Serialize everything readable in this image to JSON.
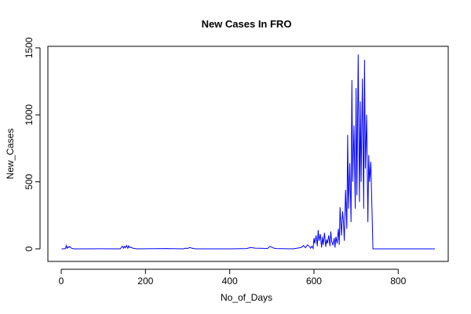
{
  "chart_data": {
    "type": "line",
    "title": "New Cases In FRO",
    "xlabel": "No_of_Days",
    "ylabel": "New_Cases",
    "xlim": [
      0,
      900
    ],
    "ylim": [
      0,
      1500
    ],
    "xticks": [
      0,
      200,
      400,
      600,
      800
    ],
    "yticks": [
      0,
      500,
      1000,
      1500
    ],
    "grid": false,
    "legend": "none",
    "series": [
      {
        "color": "#0000ff",
        "x": [
          1,
          5,
          10,
          12,
          14,
          16,
          18,
          20,
          25,
          30,
          60,
          100,
          140,
          145,
          148,
          150,
          152,
          155,
          158,
          160,
          162,
          165,
          170,
          175,
          180,
          200,
          250,
          290,
          295,
          300,
          305,
          310,
          315,
          320,
          360,
          400,
          440,
          450,
          460,
          490,
          495,
          500,
          505,
          510,
          550,
          570,
          575,
          580,
          585,
          590,
          592,
          595,
          598,
          600,
          602,
          605,
          608,
          610,
          612,
          615,
          618,
          620,
          622,
          625,
          628,
          630,
          632,
          635,
          638,
          640,
          642,
          645,
          648,
          650,
          652,
          655,
          658,
          660,
          662,
          665,
          668,
          670,
          672,
          675,
          678,
          680,
          682,
          685,
          688,
          690,
          692,
          695,
          698,
          700,
          702,
          705,
          708,
          710,
          712,
          715,
          718,
          720,
          722,
          725,
          728,
          730,
          732,
          735,
          740,
          760,
          800,
          850,
          887
        ],
        "y": [
          0,
          0,
          2,
          25,
          5,
          15,
          10,
          18,
          3,
          0,
          0,
          1,
          0,
          20,
          5,
          18,
          8,
          25,
          5,
          22,
          10,
          12,
          5,
          2,
          0,
          1,
          2,
          0,
          5,
          3,
          10,
          5,
          2,
          0,
          0,
          0,
          2,
          10,
          5,
          3,
          18,
          12,
          5,
          2,
          0,
          10,
          25,
          8,
          30,
          15,
          5,
          20,
          3,
          80,
          40,
          100,
          20,
          140,
          60,
          110,
          10,
          90,
          30,
          120,
          15,
          70,
          40,
          100,
          20,
          130,
          55,
          30,
          80,
          10,
          90,
          40,
          150,
          30,
          310,
          100,
          280,
          200,
          60,
          440,
          150,
          850,
          300,
          640,
          200,
          1260,
          500,
          920,
          300,
          1200,
          400,
          1450,
          350,
          1100,
          500,
          1270,
          300,
          1410,
          600,
          1000,
          200,
          700,
          500,
          650,
          0,
          0,
          0,
          0,
          0
        ]
      }
    ]
  }
}
